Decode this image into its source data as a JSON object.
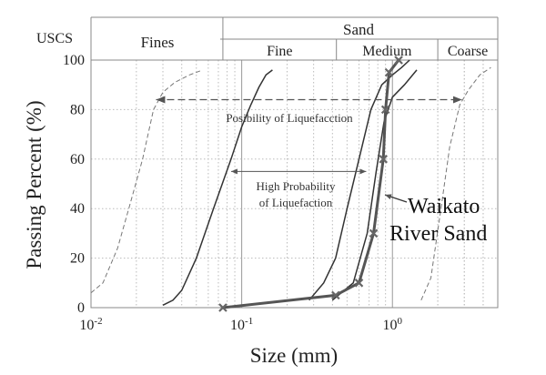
{
  "chart_data": {
    "type": "line",
    "xlabel": "Size (mm)",
    "ylabel": "Passing Percent (%)",
    "xscale": "log",
    "xlim": [
      0.01,
      5.0
    ],
    "ylim": [
      0,
      100
    ],
    "x_ticks": [
      {
        "value": 0.01,
        "base": "10",
        "exp": "-2"
      },
      {
        "value": 0.1,
        "base": "10",
        "exp": "-1"
      },
      {
        "value": 1,
        "base": "10",
        "exp": "0"
      }
    ],
    "y_ticks": [
      "0",
      "20",
      "40",
      "60",
      "80",
      "100"
    ],
    "grid": "vertical dotted (log minor), horizontal dotted",
    "uscs": {
      "label": "USCS",
      "fines": "Fines",
      "sand": "Sand",
      "sand_fine": "Fine",
      "sand_medium": "Medium",
      "sand_coarse": "Coarse",
      "boundaries": [
        0.075,
        0.425,
        2.0
      ]
    },
    "series": [
      {
        "style": "dashed-light",
        "points": [
          [
            0.01,
            6
          ],
          [
            0.012,
            10
          ],
          [
            0.015,
            24
          ],
          [
            0.018,
            41
          ],
          [
            0.022,
            60
          ],
          [
            0.026,
            80
          ],
          [
            0.03,
            87
          ],
          [
            0.036,
            91
          ],
          [
            0.045,
            94
          ],
          [
            0.055,
            96
          ]
        ]
      },
      {
        "style": "solid-thin",
        "points": [
          [
            0.03,
            1
          ],
          [
            0.035,
            3
          ],
          [
            0.04,
            7
          ],
          [
            0.05,
            20
          ],
          [
            0.065,
            40
          ],
          [
            0.085,
            60
          ],
          [
            0.1,
            73
          ],
          [
            0.115,
            82
          ],
          [
            0.13,
            89
          ],
          [
            0.145,
            94
          ],
          [
            0.16,
            96
          ]
        ]
      },
      {
        "style": "solid-thin",
        "points": [
          [
            0.28,
            3
          ],
          [
            0.35,
            10
          ],
          [
            0.42,
            20
          ],
          [
            0.5,
            40
          ],
          [
            0.6,
            60
          ],
          [
            0.72,
            80
          ],
          [
            0.85,
            90
          ],
          [
            1.0,
            94
          ],
          [
            1.15,
            97
          ],
          [
            1.3,
            100
          ]
        ]
      },
      {
        "style": "solid-thin",
        "points": [
          [
            0.4,
            3
          ],
          [
            0.55,
            10
          ],
          [
            0.68,
            30
          ],
          [
            0.78,
            55
          ],
          [
            0.88,
            75
          ],
          [
            1.0,
            85
          ],
          [
            1.2,
            90
          ],
          [
            1.45,
            96
          ]
        ]
      },
      {
        "style": "dashed-light",
        "points": [
          [
            1.55,
            3
          ],
          [
            1.8,
            12
          ],
          [
            2.1,
            40
          ],
          [
            2.4,
            65
          ],
          [
            2.8,
            82
          ],
          [
            3.2,
            88
          ],
          [
            3.8,
            94
          ],
          [
            4.5,
            97
          ]
        ]
      },
      {
        "name": "Waikato River Sand",
        "style": "solid-thick-markers",
        "points": [
          [
            0.075,
            0
          ],
          [
            0.42,
            5
          ],
          [
            0.6,
            10
          ],
          [
            0.75,
            30
          ],
          [
            0.87,
            60
          ],
          [
            0.9,
            80
          ],
          [
            0.95,
            95
          ],
          [
            1.1,
            100
          ]
        ]
      }
    ],
    "annotations": {
      "wide_band": "Posibility of Liquefacction",
      "narrow_band_line1": "High Probability",
      "narrow_band_line2": "of Liquefaction",
      "sample_line1": "Waikato",
      "sample_line2": "River Sand",
      "wide_band_range": [
        0.027,
        2.9
      ],
      "wide_band_y": 84,
      "narrow_band_range": [
        0.085,
        0.67
      ],
      "narrow_band_y": 55
    }
  }
}
